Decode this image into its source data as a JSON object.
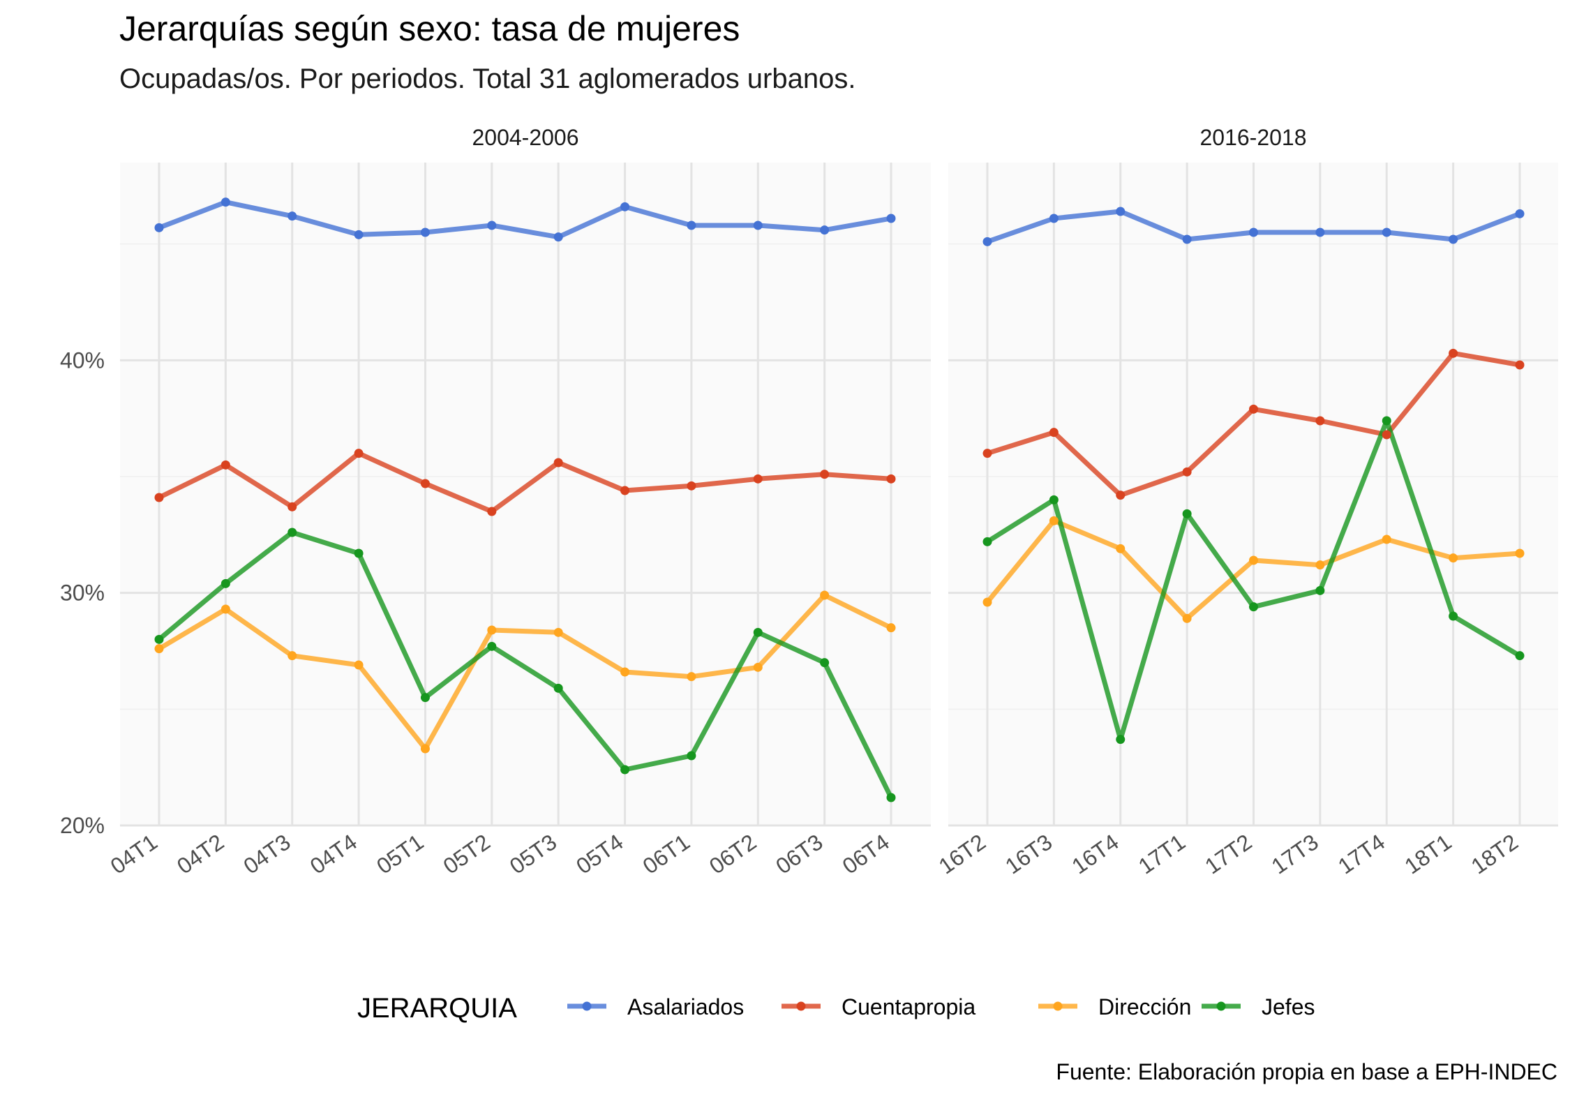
{
  "title": "Jerarquías según sexo: tasa de mujeres",
  "subtitle": "Ocupadas/os. Por periodos. Total 31 aglomerados urbanos.",
  "caption": "Fuente: Elaboración propia en base a EPH-INDEC",
  "legend": {
    "title": "JERARQUIA",
    "position": "bottom",
    "items": [
      {
        "label": "Asalariados",
        "color": "#4472d4"
      },
      {
        "label": "Cuentapropia",
        "color": "#d9421f"
      },
      {
        "label": "Dirección",
        "color": "#ffa51e"
      },
      {
        "label": "Jefes",
        "color": "#16961e"
      }
    ]
  },
  "chart_data": [
    {
      "type": "line",
      "facet": "2004-2006",
      "x": [
        "04T1",
        "04T2",
        "04T3",
        "04T4",
        "05T1",
        "05T2",
        "05T3",
        "05T4",
        "06T1",
        "06T2",
        "06T3",
        "06T4"
      ],
      "ylim": [
        20,
        48.5
      ],
      "yticks": [
        20,
        30,
        40
      ],
      "ytick_labels": [
        "20%",
        "30%",
        "40%"
      ],
      "grid": true,
      "series": [
        {
          "name": "Asalariados",
          "values": [
            45.7,
            46.8,
            46.2,
            45.4,
            45.5,
            45.8,
            45.3,
            46.6,
            45.8,
            45.8,
            45.6,
            46.1
          ]
        },
        {
          "name": "Cuentapropia",
          "values": [
            34.1,
            35.5,
            33.7,
            36.0,
            34.7,
            33.5,
            35.6,
            34.4,
            34.6,
            34.9,
            35.1,
            34.9
          ]
        },
        {
          "name": "Dirección",
          "values": [
            27.6,
            29.3,
            27.3,
            26.9,
            23.3,
            28.4,
            28.3,
            26.6,
            26.4,
            26.8,
            29.9,
            28.5
          ]
        },
        {
          "name": "Jefes",
          "values": [
            28.0,
            30.4,
            32.6,
            31.7,
            25.5,
            27.7,
            25.9,
            22.4,
            23.0,
            28.3,
            27.0,
            21.2
          ]
        }
      ]
    },
    {
      "type": "line",
      "facet": "2016-2018",
      "x": [
        "16T2",
        "16T3",
        "16T4",
        "17T1",
        "17T2",
        "17T3",
        "17T4",
        "18T1",
        "18T2"
      ],
      "ylim": [
        20,
        48.5
      ],
      "yticks": [
        20,
        30,
        40
      ],
      "ytick_labels": [
        "20%",
        "30%",
        "40%"
      ],
      "grid": true,
      "series": [
        {
          "name": "Asalariados",
          "values": [
            45.1,
            46.1,
            46.4,
            45.2,
            45.5,
            45.5,
            45.5,
            45.2,
            46.3
          ]
        },
        {
          "name": "Cuentapropia",
          "values": [
            36.0,
            36.9,
            34.2,
            35.2,
            37.9,
            37.4,
            36.8,
            40.3,
            39.8
          ]
        },
        {
          "name": "Dirección",
          "values": [
            29.6,
            33.1,
            31.9,
            28.9,
            31.4,
            31.2,
            32.3,
            31.5,
            31.7
          ]
        },
        {
          "name": "Jefes",
          "values": [
            32.2,
            34.0,
            23.7,
            33.4,
            29.4,
            30.1,
            37.4,
            29.0,
            27.3
          ]
        }
      ]
    }
  ]
}
